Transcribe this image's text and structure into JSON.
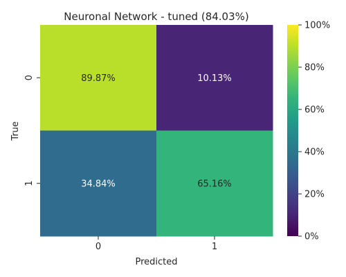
{
  "chart_data": {
    "type": "heatmap",
    "title": "Neuronal Network - tuned (84.03%)",
    "xlabel": "Predicted",
    "ylabel": "True",
    "x_categories": [
      "0",
      "1"
    ],
    "y_categories": [
      "0",
      "1"
    ],
    "values": [
      [
        89.87,
        10.13
      ],
      [
        34.84,
        65.16
      ]
    ],
    "cell_labels": [
      [
        "89.87%",
        "10.13%"
      ],
      [
        "34.84%",
        "65.16%"
      ]
    ],
    "value_range": [
      0,
      100
    ],
    "colormap": "viridis",
    "colorbar_ticks": [
      {
        "value": 0,
        "label": "0%"
      },
      {
        "value": 20,
        "label": "20%"
      },
      {
        "value": 40,
        "label": "40%"
      },
      {
        "value": 60,
        "label": "60%"
      },
      {
        "value": 80,
        "label": "80%"
      },
      {
        "value": 100,
        "label": "100%"
      }
    ],
    "grid": false
  }
}
